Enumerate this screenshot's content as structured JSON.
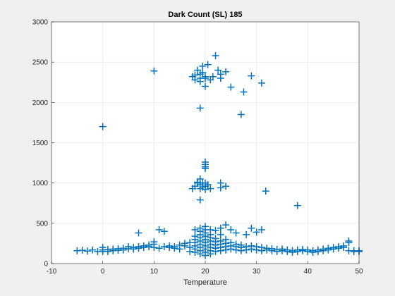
{
  "chart_data": {
    "type": "scatter",
    "title": "Dark Count (SL) 185",
    "xlabel": "Temperature",
    "ylabel": "",
    "xlim": [
      -10,
      50
    ],
    "ylim": [
      0,
      3000
    ],
    "xticks": [
      "-10",
      "0",
      "10",
      "20",
      "30",
      "40",
      "50"
    ],
    "yticks": [
      "0",
      "500",
      "1000",
      "1500",
      "2000",
      "2500",
      "3000"
    ],
    "grid": true,
    "marker": "plus",
    "colors": {
      "marker": "#0072BD",
      "grid": "#e3e3e3",
      "axis": "#262626",
      "plot_background": "#ffffff",
      "figure_background": "#f0f0f0"
    },
    "series": [
      {
        "points": [
          [
            -5,
            160
          ],
          [
            -4,
            165
          ],
          [
            -3,
            155
          ],
          [
            -2,
            170
          ],
          [
            -1,
            150
          ],
          [
            0,
            170
          ],
          [
            0,
            150
          ],
          [
            0,
            200
          ],
          [
            1,
            175
          ],
          [
            1,
            150
          ],
          [
            2,
            180
          ],
          [
            2,
            160
          ],
          [
            3,
            185
          ],
          [
            3,
            165
          ],
          [
            4,
            190
          ],
          [
            4,
            170
          ],
          [
            5,
            185
          ],
          [
            5,
            210
          ],
          [
            6,
            200
          ],
          [
            6,
            180
          ],
          [
            7,
            210
          ],
          [
            7,
            190
          ],
          [
            7,
            380
          ],
          [
            8,
            220
          ],
          [
            8,
            200
          ],
          [
            9,
            210
          ],
          [
            9,
            230
          ],
          [
            10,
            200
          ],
          [
            10,
            240
          ],
          [
            10,
            270
          ],
          [
            11,
            190
          ],
          [
            11,
            420
          ],
          [
            12,
            210
          ],
          [
            12,
            400
          ],
          [
            13,
            200
          ],
          [
            13,
            220
          ],
          [
            14,
            190
          ],
          [
            14,
            210
          ],
          [
            15,
            230
          ],
          [
            15,
            180
          ],
          [
            16,
            220
          ],
          [
            16,
            250
          ],
          [
            17,
            200
          ],
          [
            17,
            260
          ],
          [
            17,
            150
          ],
          [
            18,
            140
          ],
          [
            18,
            180
          ],
          [
            18,
            220
          ],
          [
            18,
            260
          ],
          [
            18,
            300
          ],
          [
            18,
            340
          ],
          [
            18,
            420
          ],
          [
            19,
            120
          ],
          [
            19,
            160
          ],
          [
            19,
            200
          ],
          [
            19,
            240
          ],
          [
            19,
            280
          ],
          [
            19,
            320
          ],
          [
            19,
            360
          ],
          [
            19,
            400
          ],
          [
            19,
            440
          ],
          [
            20,
            100
          ],
          [
            20,
            140
          ],
          [
            20,
            180
          ],
          [
            20,
            220
          ],
          [
            20,
            260
          ],
          [
            20,
            300
          ],
          [
            20,
            340
          ],
          [
            20,
            380
          ],
          [
            20,
            420
          ],
          [
            20,
            460
          ],
          [
            21,
            120
          ],
          [
            21,
            160
          ],
          [
            21,
            200
          ],
          [
            21,
            240
          ],
          [
            21,
            280
          ],
          [
            21,
            320
          ],
          [
            21,
            360
          ],
          [
            21,
            420
          ],
          [
            22,
            150
          ],
          [
            22,
            190
          ],
          [
            22,
            230
          ],
          [
            22,
            270
          ],
          [
            22,
            310
          ],
          [
            22,
            410
          ],
          [
            23,
            160
          ],
          [
            23,
            200
          ],
          [
            23,
            240
          ],
          [
            23,
            280
          ],
          [
            23,
            360
          ],
          [
            23,
            440
          ],
          [
            24,
            170
          ],
          [
            24,
            210
          ],
          [
            24,
            250
          ],
          [
            24,
            300
          ],
          [
            24,
            480
          ],
          [
            25,
            180
          ],
          [
            25,
            220
          ],
          [
            25,
            260
          ],
          [
            25,
            420
          ],
          [
            26,
            170
          ],
          [
            26,
            210
          ],
          [
            26,
            240
          ],
          [
            26,
            380
          ],
          [
            27,
            160
          ],
          [
            27,
            200
          ],
          [
            27,
            230
          ],
          [
            28,
            170
          ],
          [
            28,
            210
          ],
          [
            28,
            360
          ],
          [
            29,
            180
          ],
          [
            29,
            220
          ],
          [
            29,
            440
          ],
          [
            30,
            170
          ],
          [
            30,
            210
          ],
          [
            30,
            390
          ],
          [
            31,
            160
          ],
          [
            31,
            200
          ],
          [
            31,
            420
          ],
          [
            32,
            170
          ],
          [
            32,
            190
          ],
          [
            33,
            160
          ],
          [
            33,
            185
          ],
          [
            34,
            150
          ],
          [
            34,
            175
          ],
          [
            35,
            160
          ],
          [
            35,
            180
          ],
          [
            36,
            150
          ],
          [
            36,
            170
          ],
          [
            37,
            140
          ],
          [
            37,
            160
          ],
          [
            38,
            150
          ],
          [
            38,
            170
          ],
          [
            39,
            160
          ],
          [
            39,
            175
          ],
          [
            40,
            150
          ],
          [
            40,
            170
          ],
          [
            41,
            140
          ],
          [
            41,
            160
          ],
          [
            42,
            150
          ],
          [
            42,
            170
          ],
          [
            43,
            160
          ],
          [
            43,
            180
          ],
          [
            44,
            170
          ],
          [
            44,
            190
          ],
          [
            45,
            180
          ],
          [
            45,
            200
          ],
          [
            46,
            190
          ],
          [
            46,
            210
          ],
          [
            47,
            200
          ],
          [
            47,
            220
          ],
          [
            48,
            160
          ],
          [
            48,
            260
          ],
          [
            48,
            280
          ],
          [
            49,
            150
          ],
          [
            49,
            160
          ],
          [
            50,
            150
          ],
          [
            50,
            160
          ],
          [
            17.5,
            930
          ],
          [
            18,
            960
          ],
          [
            18.5,
            1000
          ],
          [
            18.5,
            1010
          ],
          [
            19,
            980
          ],
          [
            19,
            1050
          ],
          [
            19,
            930
          ],
          [
            19,
            790
          ],
          [
            19.5,
            950
          ],
          [
            19.5,
            1000
          ],
          [
            20,
            920
          ],
          [
            20,
            960
          ],
          [
            20,
            1000
          ],
          [
            20.5,
            980
          ],
          [
            21,
            930
          ],
          [
            23,
            940
          ],
          [
            23,
            1000
          ],
          [
            24,
            960
          ],
          [
            20,
            1180
          ],
          [
            20,
            1200
          ],
          [
            20,
            1230
          ],
          [
            20,
            1260
          ],
          [
            31.8,
            900
          ],
          [
            38,
            720
          ],
          [
            0,
            1700
          ],
          [
            10,
            2390
          ],
          [
            19,
            1930
          ],
          [
            27,
            1850
          ],
          [
            17.5,
            2320
          ],
          [
            18,
            2280
          ],
          [
            18,
            2340
          ],
          [
            18.5,
            2400
          ],
          [
            19,
            2260
          ],
          [
            19,
            2300
          ],
          [
            19,
            2350
          ],
          [
            19.5,
            2370
          ],
          [
            19.5,
            2450
          ],
          [
            20,
            2200
          ],
          [
            20,
            2300
          ],
          [
            20,
            2320
          ],
          [
            20.5,
            2470
          ],
          [
            21,
            2280
          ],
          [
            21.5,
            2320
          ],
          [
            22,
            2580
          ],
          [
            22.5,
            2400
          ],
          [
            23,
            2350
          ],
          [
            23,
            2300
          ],
          [
            24,
            2380
          ],
          [
            25,
            2190
          ],
          [
            27.5,
            2130
          ],
          [
            29,
            2330
          ],
          [
            31,
            2240
          ]
        ]
      }
    ]
  }
}
